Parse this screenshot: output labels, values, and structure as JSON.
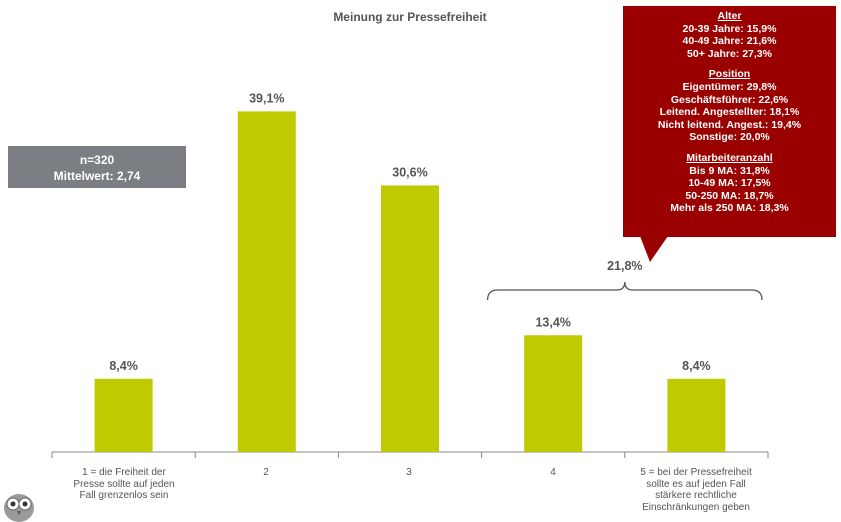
{
  "chart_data": {
    "type": "bar",
    "title": "Meinung zur Pressefreiheit",
    "categories": [
      "1 = die Freiheit der Presse sollte auf jeden Fall grenzenlos sein",
      "2",
      "3",
      "4",
      "5 = bei der Pressefreiheit sollte es auf jeden Fall stärkere rechtliche Einschränkungen geben"
    ],
    "category_lines": [
      [
        "1 = die Freiheit der",
        "Presse sollte auf jeden",
        "Fall grenzenlos sein"
      ],
      [
        "2"
      ],
      [
        "3"
      ],
      [
        "4"
      ],
      [
        "5 = bei der Pressefreiheit",
        "sollte es auf jeden Fall",
        "stärkere rechtliche",
        "Einschränkungen geben"
      ]
    ],
    "values": [
      8.4,
      39.1,
      30.6,
      13.4,
      8.4
    ],
    "value_labels": [
      "8,4%",
      "39,1%",
      "30,6%",
      "13,4%",
      "8,4%"
    ],
    "ylim": [
      0,
      45
    ],
    "bar_color": "#bfca00",
    "grid": false,
    "legend": "none",
    "bracket": {
      "categories": [
        4,
        5
      ],
      "label": "21,8%"
    }
  },
  "sample_box": {
    "line1": "n=320",
    "line2": "Mittelwert: 2,74"
  },
  "callout": {
    "groups": [
      {
        "head": "Alter",
        "lines": [
          "20-39 Jahre: 15,9%",
          "40-49 Jahre: 21,6%",
          "50+ Jahre: 27,3%"
        ]
      },
      {
        "head": "Position",
        "lines": [
          "Eigentümer: 29,8%",
          "Geschäftsführer: 22,6%",
          "Leitend. Angestellter: 18,1%",
          "Nicht leitend. Angest.: 19,4%",
          "Sonstige: 20,0%"
        ]
      },
      {
        "head": "Mitarbeiteranzahl",
        "lines": [
          "Bis 9 MA: 31,8%",
          "10-49 MA: 17,5%",
          "50-250 MA: 18,7%",
          "Mehr als 250 MA: 18,3%"
        ]
      }
    ]
  },
  "colors": {
    "callout_bg": "#9a0000",
    "box_bg": "#7b7f84",
    "text": "#555555"
  },
  "logo_icon": "owl-mascot-icon"
}
